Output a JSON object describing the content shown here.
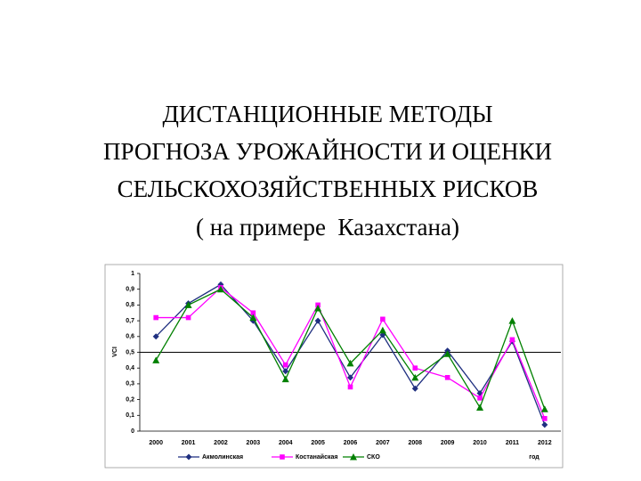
{
  "slide_title": [
    "ДИСТАНЦИОННЫЕ МЕТОДЫ",
    "ПРОГНОЗА УРОЖАЙНОСТИ И ОЦЕНКИ",
    "СЕЛЬСКОХОЗЯЙСТВЕННЫХ РИСКОВ",
    "( на примере  Казахстана)"
  ],
  "chart_data": {
    "type": "line",
    "y_label": "VCI",
    "x_label": "год",
    "categories": [
      "2000",
      "2001",
      "2002",
      "2003",
      "2004",
      "2005",
      "2006",
      "2007",
      "2008",
      "2009",
      "2010",
      "2011",
      "2012"
    ],
    "series": [
      {
        "name": "Акмолинская",
        "color": "#1f2f80",
        "marker": "diamond",
        "values": [
          0.6,
          0.81,
          0.93,
          0.7,
          0.38,
          0.7,
          0.34,
          0.61,
          0.27,
          0.51,
          0.24,
          0.57,
          0.04
        ]
      },
      {
        "name": "Костанайская",
        "color": "#ff00ff",
        "marker": "square",
        "values": [
          0.72,
          0.72,
          0.91,
          0.75,
          0.42,
          0.8,
          0.28,
          0.71,
          0.4,
          0.34,
          0.21,
          0.58,
          0.08
        ]
      },
      {
        "name": "СКО",
        "color": "#008000",
        "marker": "triangle",
        "values": [
          0.45,
          0.8,
          0.9,
          0.72,
          0.33,
          0.78,
          0.43,
          0.64,
          0.34,
          0.49,
          0.15,
          0.7,
          0.14
        ]
      }
    ],
    "ylim": [
      0,
      1
    ],
    "yticks": [
      0,
      {
        "value": 0.1,
        "label": "0,1"
      },
      {
        "value": 0.2,
        "label": "0,2"
      },
      {
        "value": 0.3,
        "label": "0,3"
      },
      {
        "value": 0.4,
        "label": "0,4"
      },
      {
        "value": 0.5,
        "label": "0,5"
      },
      {
        "value": 0.6,
        "label": "0,6"
      },
      {
        "value": 0.7,
        "label": "0,7"
      },
      {
        "value": 0.8,
        "label": "0,8"
      },
      {
        "value": 0.9,
        "label": "0,9"
      },
      1
    ],
    "reference_line": 0.5
  }
}
